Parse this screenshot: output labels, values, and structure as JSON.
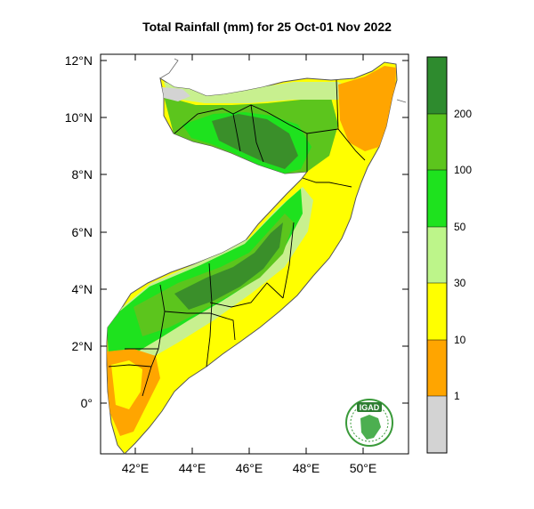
{
  "title": "Total Rainfall (mm) for 25 Oct-01 Nov 2022",
  "map": {
    "region": "Somalia",
    "lat_ticks": [
      "12°N",
      "10°N",
      "8°N",
      "6°N",
      "4°N",
      "2°N",
      "0°"
    ],
    "lon_ticks": [
      "42°E",
      "44°E",
      "46°E",
      "48°E",
      "50°E"
    ]
  },
  "colorbar": {
    "labels": [
      "200",
      "100",
      "50",
      "30",
      "10",
      "1"
    ],
    "colors": [
      "#2e8b2e",
      "#5cc51d",
      "#8cd71f",
      "#1ee21e",
      "#bdf58a",
      "#ffff00",
      "#ffa500",
      "#d3d3d3"
    ]
  },
  "logo": {
    "text": "IGAD"
  },
  "palette": {
    "dark_green": "#3a8f2a",
    "green": "#4fc321",
    "light_green": "#a9e36a",
    "pale_green": "#c8f08f",
    "yellow": "#ffff00",
    "orange": "#ffa500",
    "boundary": "#000000"
  }
}
